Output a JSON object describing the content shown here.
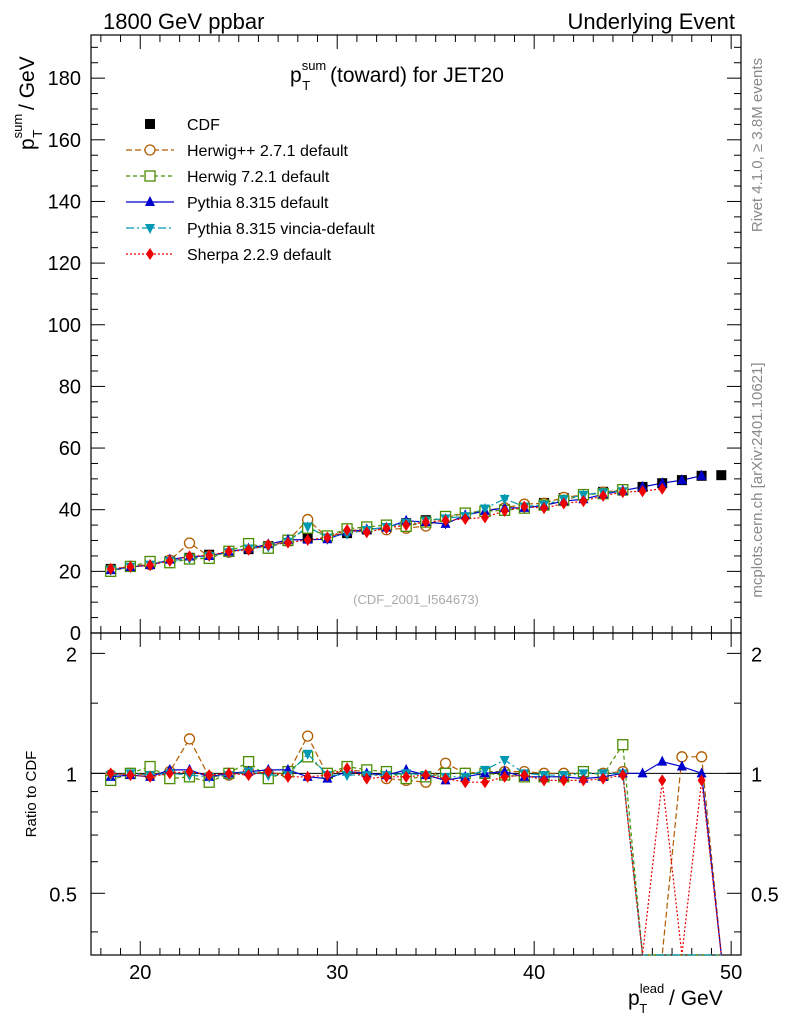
{
  "header": {
    "left": "1800 GeV ppbar",
    "right": "Underlying Event"
  },
  "side_labels": {
    "rivet": "Rivet 4.1.0, ≥ 3.8M events",
    "mcplots": "mcplots.cern.ch [arXiv:2401.10621]"
  },
  "chart_data": {
    "type": "line",
    "title": "p_T^sum (toward) for JET20",
    "title_main": "p",
    "title_sup": "sum",
    "title_sub": "T",
    "title_rest": " (toward) for JET20",
    "watermark": "(CDF_2001_I564673)",
    "xlabel": "p_T^lead / GeV",
    "xlabel_main": "p",
    "xlabel_sup": "lead",
    "xlabel_sub": "T",
    "xlabel_rest": " / GeV",
    "ylabel": "p_T^sum / GeV",
    "ylabel_main": "p",
    "ylabel_sup": "sum",
    "ylabel_sub": "T",
    "ylabel_rest": " / GeV",
    "ratio_ylabel": "Ratio to CDF",
    "xlim": [
      17.5,
      50.5
    ],
    "ylim": [
      0,
      194
    ],
    "ratio_ylim": [
      0.35,
      2.25
    ],
    "x_ticks": [
      20,
      30,
      40,
      50
    ],
    "y_ticks": [
      0,
      20,
      40,
      60,
      80,
      100,
      120,
      140,
      160,
      180
    ],
    "ratio_ticks": [
      0.5,
      1,
      2
    ],
    "x": [
      18.5,
      19.5,
      20.5,
      21.5,
      22.5,
      23.5,
      24.5,
      25.5,
      26.5,
      27.5,
      28.5,
      29.5,
      30.5,
      31.5,
      32.5,
      33.5,
      34.5,
      35.5,
      36.5,
      37.5,
      38.5,
      39.5,
      40.5,
      41.5,
      42.5,
      43.5,
      44.5,
      45.5,
      46.5,
      47.5,
      48.5,
      49.5
    ],
    "series": [
      {
        "name": "CDF",
        "color": "#000000",
        "marker": "square",
        "dash": "",
        "values": [
          20.8,
          21.6,
          22.4,
          23.4,
          24.4,
          25.4,
          26.4,
          27.2,
          28.2,
          29.8,
          30.8,
          31.4,
          32.4,
          33.6,
          34.6,
          35.6,
          36.6,
          37.8,
          38.8,
          39.6,
          40.2,
          41.2,
          42.2,
          43.8,
          44.6,
          45.8,
          46.2,
          47.4,
          48.6,
          49.6,
          51.0,
          51.2
        ]
      },
      {
        "name": "Herwig++ 2.7.1 default",
        "color": "#b25c00",
        "marker": "circle-open",
        "dash": "6,3",
        "values": [
          20.5,
          21.7,
          22.2,
          23.6,
          29.2,
          24.9,
          26.2,
          27.6,
          28.2,
          29.9,
          36.8,
          31.0,
          33.0,
          34.0,
          33.5,
          34.0,
          34.7,
          37.5,
          38.8,
          39.8,
          40.6,
          41.8,
          42.1,
          44.0,
          44.8,
          45.7,
          46.5,
          null,
          null,
          null,
          null,
          null
        ],
        "ratio": [
          0.99,
          1.0,
          0.99,
          1.01,
          1.22,
          0.98,
          0.99,
          1.01,
          1.0,
          1.0,
          1.24,
          0.99,
          1.02,
          1.01,
          0.97,
          0.96,
          0.95,
          1.06,
          1.0,
          1.01,
          1.01,
          1.01,
          1.0,
          1.0,
          1.0,
          1.0,
          1.01,
          0,
          0,
          1.1,
          1.1,
          0
        ]
      },
      {
        "name": "Herwig 7.2.1 default",
        "color": "#4c8c00",
        "marker": "square-open",
        "dash": "4,3",
        "values": [
          20.0,
          21.6,
          23.2,
          22.8,
          24.0,
          24.2,
          26.5,
          29.0,
          27.5,
          30.1,
          34.0,
          31.5,
          33.8,
          34.4,
          35.0,
          34.6,
          36.0,
          37.8,
          38.9,
          39.5,
          39.8,
          40.5,
          41.5,
          43.0,
          44.9,
          45.2,
          46.5,
          null,
          null,
          null,
          null,
          null
        ],
        "ratio": [
          0.96,
          1.0,
          1.04,
          0.97,
          0.98,
          0.95,
          1.0,
          1.07,
          0.97,
          1.01,
          1.1,
          1.0,
          1.04,
          1.02,
          1.01,
          0.97,
          0.98,
          1.0,
          1.0,
          1.0,
          0.99,
          0.98,
          0.98,
          0.98,
          1.01,
          0.99,
          1.18,
          0,
          0,
          0,
          0,
          0
        ]
      },
      {
        "name": "Pythia 8.315 default",
        "color": "#0000cc",
        "marker": "triangle-up",
        "dash": "",
        "values": [
          20.4,
          21.4,
          22.0,
          23.8,
          24.8,
          25.0,
          26.4,
          27.4,
          28.8,
          30.2,
          30.3,
          30.4,
          32.8,
          33.6,
          34.2,
          36.4,
          36.0,
          35.4,
          38.2,
          39.6,
          40.6,
          40.6,
          41.4,
          42.8,
          43.4,
          45.0,
          46.2,
          47.4,
          48.6,
          49.6,
          51.0,
          null
        ],
        "ratio": [
          0.98,
          0.99,
          0.98,
          1.02,
          1.02,
          0.98,
          1.0,
          1.01,
          1.02,
          1.02,
          0.98,
          0.97,
          1.01,
          1.0,
          0.99,
          1.02,
          0.99,
          0.96,
          0.98,
          1.0,
          1.01,
          0.98,
          0.98,
          0.98,
          0.97,
          0.98,
          1.0,
          1.0,
          1.07,
          1.04,
          1.0,
          0
        ]
      },
      {
        "name": "Pythia 8.315 vincia-default",
        "color": "#0099b3",
        "marker": "triangle-down",
        "dash": "8,3,2,3",
        "values": [
          20.5,
          21.5,
          22.2,
          23.4,
          24.2,
          25.0,
          26.2,
          27.4,
          28.0,
          29.6,
          34.5,
          31.0,
          32.2,
          33.4,
          34.4,
          35.7,
          36.4,
          37.2,
          37.9,
          40.4,
          43.5,
          41.0,
          41.6,
          43.4,
          44.8,
          45.6,
          46.0,
          null,
          null,
          null,
          null,
          null
        ],
        "ratio": [
          0.99,
          1.0,
          0.99,
          1.0,
          0.99,
          0.98,
          0.99,
          1.01,
          0.99,
          0.99,
          1.12,
          0.99,
          0.99,
          0.99,
          0.99,
          1.0,
          0.99,
          0.98,
          0.98,
          1.02,
          1.08,
          1.0,
          0.99,
          0.99,
          1.0,
          1.0,
          1.0,
          0,
          0,
          0,
          0,
          0
        ]
      },
      {
        "name": "Sherpa 2.2.9 default",
        "color": "#ee0000",
        "marker": "diamond",
        "dash": "2,2",
        "values": [
          20.8,
          21.5,
          22.0,
          23.4,
          24.9,
          25.2,
          26.5,
          27.0,
          28.6,
          29.3,
          30.2,
          31.0,
          33.4,
          32.7,
          34.0,
          35.0,
          36.0,
          36.5,
          37.0,
          37.5,
          39.6,
          41.0,
          40.5,
          42.0,
          42.8,
          44.5,
          45.7,
          46.0,
          46.8,
          null,
          null,
          null
        ],
        "ratio": [
          1.0,
          0.99,
          0.98,
          1.0,
          1.01,
          0.99,
          1.0,
          0.99,
          1.01,
          0.98,
          0.98,
          0.99,
          1.03,
          0.97,
          0.98,
          0.98,
          0.99,
          0.97,
          0.95,
          0.95,
          0.98,
          0.99,
          0.96,
          0.96,
          0.96,
          0.97,
          0.99,
          0,
          0.96,
          0,
          0.96,
          0
        ]
      }
    ]
  }
}
